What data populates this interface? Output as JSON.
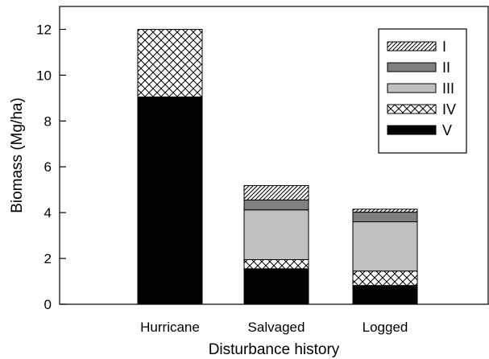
{
  "chart_data": {
    "type": "bar",
    "stacked": true,
    "categories": [
      "Hurricane",
      "Salvaged",
      "Logged"
    ],
    "xlabel": "Disturbance history",
    "ylabel": "Biomass (Mg/ha)",
    "ylim": [
      0,
      13
    ],
    "yticks": [
      0,
      2,
      4,
      6,
      8,
      10,
      12
    ],
    "grid": false,
    "legend_position": "top-right",
    "series": [
      {
        "name": "V",
        "pattern": "solid-black",
        "values": [
          9.05,
          1.55,
          0.82
        ]
      },
      {
        "name": "IV",
        "pattern": "crosshatch",
        "values": [
          2.95,
          0.4,
          0.63
        ]
      },
      {
        "name": "III",
        "pattern": "light-gray",
        "values": [
          0.0,
          2.17,
          2.15
        ]
      },
      {
        "name": "II",
        "pattern": "dark-gray",
        "values": [
          0.0,
          0.43,
          0.42
        ]
      },
      {
        "name": "I",
        "pattern": "diagonal-hatch",
        "values": [
          0.0,
          0.63,
          0.13
        ]
      }
    ],
    "legend_order": [
      "I",
      "II",
      "III",
      "IV",
      "V"
    ]
  }
}
